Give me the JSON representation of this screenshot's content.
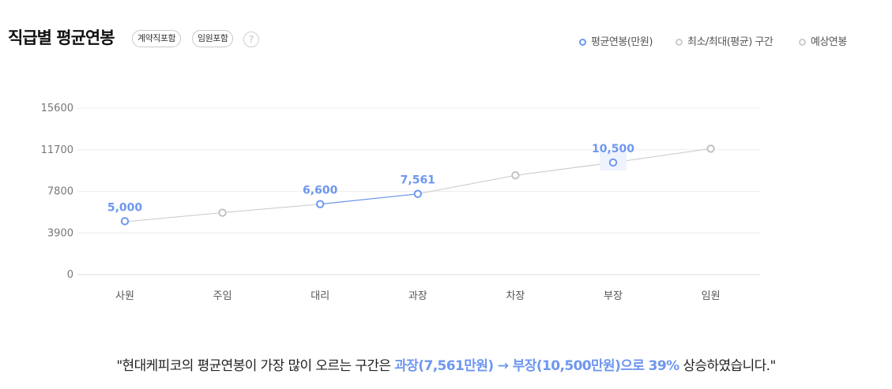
{
  "header": {
    "title": "직급별 평균연봉",
    "tags": [
      "계약직포함",
      "임원포함"
    ],
    "help_label": "?"
  },
  "legend": {
    "items": [
      {
        "label": "평균연봉(만원)",
        "color": "#6e97f0"
      },
      {
        "label": "최소/최대(평균) 구간",
        "color": "#cccccc"
      },
      {
        "label": "예상연봉",
        "color": "#cccccc"
      }
    ]
  },
  "chart_data": {
    "type": "line",
    "categories": [
      "사원",
      "주임",
      "대리",
      "과장",
      "차장",
      "부장",
      "임원"
    ],
    "ylim": [
      0,
      15600
    ],
    "yticks": [
      0,
      3900,
      7800,
      11700,
      15600
    ],
    "series": [
      {
        "name": "평균연봉(만원)",
        "values": [
          5000,
          null,
          6600,
          7561,
          null,
          10500,
          null
        ],
        "color": "#6e97f0"
      },
      {
        "name": "예상연봉",
        "values": [
          4950,
          5800,
          6600,
          7561,
          9300,
          10500,
          11800
        ],
        "color": "#c8c8c8"
      }
    ],
    "data_labels": [
      "5,000",
      "",
      "6,600",
      "7,561",
      "",
      "10,500",
      ""
    ],
    "grid": true
  },
  "summary": {
    "prefix": "\"현대케피코의 평균연봉이 가장 많이 오르는 구간은 ",
    "highlight": "과장(7,561만원) → 부장(10,500만원)으로 39%",
    "suffix": " 상승하였습니다.\""
  }
}
